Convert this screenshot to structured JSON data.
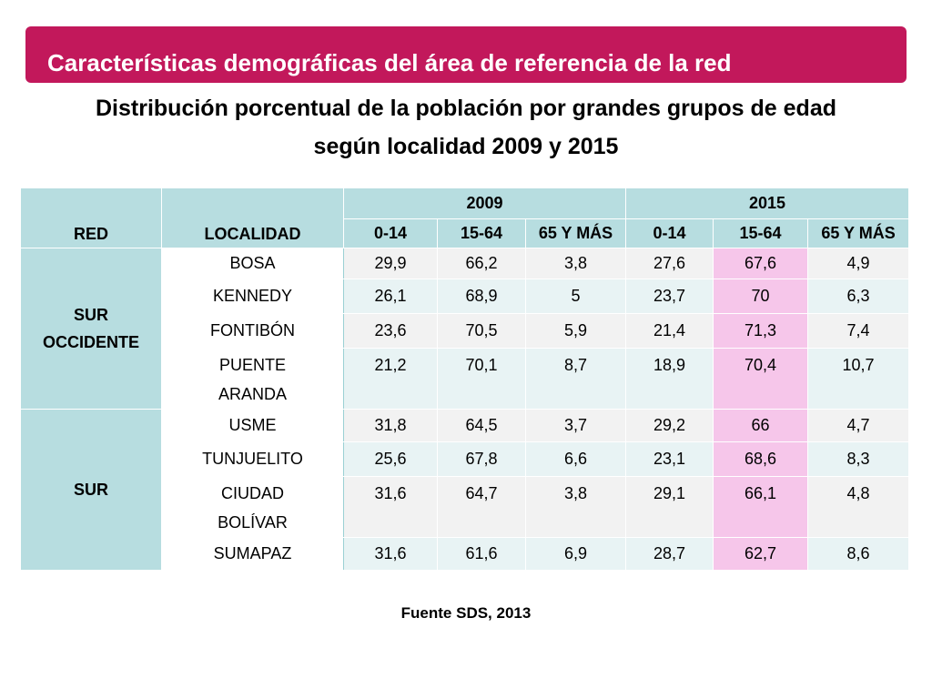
{
  "header": {
    "title": "Características demográficas del área de referencia de la red",
    "subtitle_line1": "Distribución porcentual de la población por grandes grupos de edad",
    "subtitle_line2": "según localidad 2009 y 2015"
  },
  "table": {
    "col_red": "RED",
    "col_localidad": "LOCALIDAD",
    "year1": "2009",
    "year2": "2015",
    "age_groups": [
      "0-14",
      "15-64",
      "65 Y MÁS"
    ],
    "groups": [
      {
        "red_line1": "SUR",
        "red_line2": "OCCIDENTE",
        "rows": [
          {
            "localidad": "BOSA",
            "v2009": [
              "29,9",
              "66,2",
              "3,8"
            ],
            "v2015": [
              "27,6",
              "67,6",
              "4,9"
            ]
          },
          {
            "localidad": "KENNEDY",
            "v2009": [
              "26,1",
              "68,9",
              "5"
            ],
            "v2015": [
              "23,7",
              "70",
              "6,3"
            ]
          },
          {
            "localidad": "FONTIBÓN",
            "v2009": [
              "23,6",
              "70,5",
              "5,9"
            ],
            "v2015": [
              "21,4",
              "71,3",
              "7,4"
            ]
          },
          {
            "localidad_line1": "PUENTE",
            "localidad_line2": "ARANDA",
            "v2009": [
              "21,2",
              "70,1",
              "8,7"
            ],
            "v2015": [
              "18,9",
              "70,4",
              "10,7"
            ]
          }
        ]
      },
      {
        "red_line1": "SUR",
        "rows": [
          {
            "localidad": "USME",
            "v2009": [
              "31,8",
              "64,5",
              "3,7"
            ],
            "v2015": [
              "29,2",
              "66",
              "4,7"
            ]
          },
          {
            "localidad": "TUNJUELITO",
            "v2009": [
              "25,6",
              "67,8",
              "6,6"
            ],
            "v2015": [
              "23,1",
              "68,6",
              "8,3"
            ]
          },
          {
            "localidad_line1": "CIUDAD",
            "localidad_line2": "BOLÍVAR",
            "v2009": [
              "31,6",
              "64,7",
              "3,8"
            ],
            "v2015": [
              "29,1",
              "66,1",
              "4,8"
            ]
          },
          {
            "localidad": "SUMAPAZ",
            "v2009": [
              "31,6",
              "61,6",
              "6,9"
            ],
            "v2015": [
              "28,7",
              "62,7",
              "8,6"
            ]
          }
        ]
      }
    ]
  },
  "footer": {
    "source": "Fuente SDS, 2013"
  },
  "colors": {
    "banner": "#c2185b",
    "header_fill": "#b7dde0",
    "highlight_2015_15_64": "#f6c6ea"
  }
}
